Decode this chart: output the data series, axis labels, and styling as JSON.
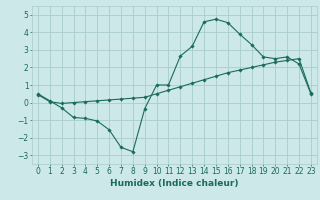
{
  "xlabel": "Humidex (Indice chaleur)",
  "bg_color": "#cce8e8",
  "line_color": "#1a6b5a",
  "grid_color": "#aacccc",
  "xlim": [
    -0.5,
    23.5
  ],
  "ylim": [
    -3.5,
    5.5
  ],
  "yticks": [
    -3,
    -2,
    -1,
    0,
    1,
    2,
    3,
    4,
    5
  ],
  "xtick_positions": [
    0,
    1,
    2,
    3,
    4,
    5,
    6,
    7,
    8,
    9,
    10,
    11,
    12,
    13,
    14,
    15,
    16,
    17,
    18,
    19,
    20,
    21,
    22,
    23
  ],
  "xtick_labels": [
    "0",
    "1",
    "2",
    "3",
    "4",
    "5",
    "6",
    "7",
    "8",
    "9",
    "10",
    "11",
    "12",
    "13",
    "14",
    "15",
    "16",
    "17",
    "18",
    "19",
    "20",
    "21",
    "22",
    "23"
  ],
  "curve1_x": [
    0,
    1,
    2,
    3,
    4,
    5,
    6,
    7,
    8,
    9,
    10,
    11,
    12,
    13,
    14,
    15,
    16,
    17,
    18,
    19,
    20,
    21,
    22,
    23
  ],
  "curve1_y": [
    0.5,
    0.1,
    -0.3,
    -0.85,
    -0.9,
    -1.05,
    -1.55,
    -2.55,
    -2.8,
    -0.35,
    1.0,
    1.0,
    2.65,
    3.2,
    4.6,
    4.75,
    4.55,
    3.9,
    3.3,
    2.6,
    2.5,
    2.6,
    2.2,
    0.5
  ],
  "curve2_x": [
    0,
    1,
    2,
    3,
    4,
    5,
    6,
    7,
    8,
    9,
    10,
    11,
    12,
    13,
    14,
    15,
    16,
    17,
    18,
    19,
    20,
    21,
    22,
    23
  ],
  "curve2_y": [
    0.45,
    0.05,
    -0.05,
    0.0,
    0.05,
    0.1,
    0.15,
    0.2,
    0.25,
    0.3,
    0.5,
    0.7,
    0.9,
    1.1,
    1.3,
    1.5,
    1.7,
    1.85,
    2.0,
    2.15,
    2.3,
    2.4,
    2.5,
    0.55
  ],
  "marker": "D",
  "marker_size": 1.8,
  "line_width": 0.8,
  "xlabel_fontsize": 6.5,
  "tick_fontsize": 5.5
}
